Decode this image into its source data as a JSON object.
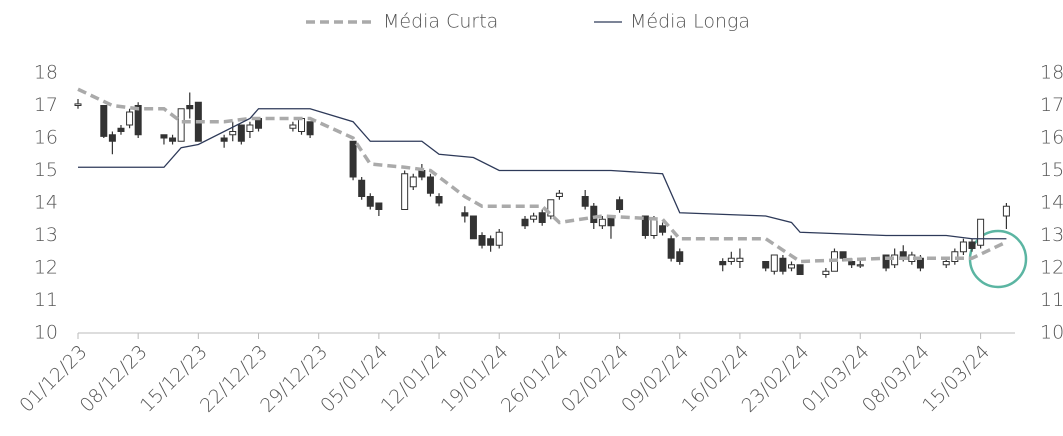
{
  "chart_data": {
    "type": "candlestick",
    "x": [
      "01/12/23",
      "04/12/23",
      "05/12/23",
      "06/12/23",
      "07/12/23",
      "08/12/23",
      "11/12/23",
      "12/12/23",
      "13/12/23",
      "14/12/23",
      "15/12/23",
      "18/12/23",
      "19/12/23",
      "20/12/23",
      "21/12/23",
      "22/12/23",
      "26/12/23",
      "27/12/23",
      "28/12/23",
      "02/01/24",
      "03/01/24",
      "04/01/24",
      "05/01/24",
      "08/01/24",
      "09/01/24",
      "10/01/24",
      "11/01/24",
      "12/01/24",
      "15/01/24",
      "16/01/24",
      "17/01/24",
      "18/01/24",
      "19/01/24",
      "22/01/24",
      "23/01/24",
      "24/01/24",
      "25/01/24",
      "26/01/24",
      "29/01/24",
      "30/01/24",
      "31/01/24",
      "01/02/24",
      "02/02/24",
      "05/02/24",
      "06/02/24",
      "07/02/24",
      "08/02/24",
      "09/02/24",
      "14/02/24",
      "15/02/24",
      "16/02/24",
      "19/02/24",
      "20/02/24",
      "21/02/24",
      "22/02/24",
      "23/02/24",
      "26/02/24",
      "27/02/24",
      "28/02/24",
      "29/02/24",
      "01/03/24",
      "04/03/24",
      "05/03/24",
      "06/03/24",
      "07/03/24",
      "08/03/24",
      "11/03/24",
      "12/03/24",
      "13/03/24",
      "14/03/24",
      "15/03/24",
      "18/03/24"
    ],
    "open": [
      17.0,
      17.0,
      16.1,
      16.3,
      16.4,
      17.0,
      16.1,
      16.0,
      15.9,
      17.0,
      17.1,
      16.0,
      16.1,
      16.4,
      16.2,
      16.6,
      16.3,
      16.2,
      16.5,
      15.9,
      14.7,
      14.2,
      14.0,
      13.8,
      14.5,
      15.0,
      14.8,
      14.2,
      13.7,
      13.6,
      13.0,
      12.9,
      12.7,
      13.5,
      13.5,
      13.7,
      13.6,
      14.2,
      14.2,
      13.9,
      13.3,
      13.6,
      14.1,
      13.6,
      13.0,
      13.3,
      12.9,
      12.5,
      12.2,
      12.2,
      12.2,
      12.2,
      11.9,
      12.3,
      12.0,
      12.1,
      11.8,
      11.9,
      12.5,
      12.2,
      12.1,
      12.4,
      12.1,
      12.5,
      12.2,
      12.3,
      12.1,
      12.2,
      12.5,
      12.8,
      12.7,
      13.6
    ],
    "high": [
      17.2,
      17.0,
      16.2,
      16.4,
      16.9,
      17.1,
      16.1,
      16.1,
      16.9,
      17.4,
      17.1,
      16.1,
      16.5,
      16.4,
      16.5,
      16.6,
      16.5,
      16.6,
      16.5,
      15.9,
      14.8,
      14.3,
      14.0,
      15.0,
      14.9,
      15.2,
      14.9,
      14.3,
      13.9,
      13.6,
      13.1,
      13.0,
      13.2,
      13.6,
      13.7,
      13.8,
      14.1,
      14.4,
      14.4,
      14.0,
      13.6,
      13.6,
      14.2,
      13.6,
      13.6,
      13.4,
      13.0,
      12.6,
      12.3,
      12.5,
      12.6,
      12.2,
      12.4,
      12.4,
      12.2,
      12.1,
      12.0,
      12.6,
      12.5,
      12.3,
      12.3,
      12.4,
      12.6,
      12.7,
      12.5,
      12.4,
      12.3,
      12.6,
      12.9,
      12.9,
      13.5,
      14.0
    ],
    "low": [
      16.9,
      16.0,
      15.5,
      16.1,
      16.3,
      16.0,
      15.8,
      15.8,
      15.9,
      16.6,
      15.9,
      15.7,
      15.9,
      15.8,
      16.0,
      16.2,
      16.2,
      16.1,
      16.0,
      14.7,
      14.1,
      13.8,
      13.6,
      13.8,
      14.4,
      14.7,
      14.2,
      13.9,
      13.4,
      12.9,
      12.6,
      12.5,
      12.6,
      13.2,
      13.4,
      13.3,
      13.5,
      14.1,
      13.8,
      13.2,
      13.2,
      12.9,
      13.7,
      12.9,
      12.9,
      13.0,
      12.2,
      12.1,
      11.9,
      12.1,
      12.0,
      11.9,
      11.8,
      11.8,
      11.9,
      11.8,
      11.7,
      11.9,
      12.2,
      12.0,
      12.0,
      11.9,
      12.0,
      12.2,
      12.1,
      11.9,
      12.0,
      12.1,
      12.4,
      12.5,
      12.6,
      13.2
    ],
    "close": [
      17.05,
      16.05,
      15.9,
      16.2,
      16.8,
      16.1,
      16.0,
      15.9,
      16.9,
      16.9,
      15.9,
      15.9,
      16.2,
      15.9,
      16.4,
      16.3,
      16.4,
      16.6,
      16.1,
      14.8,
      14.2,
      13.9,
      13.8,
      14.9,
      14.8,
      14.8,
      14.3,
      14.0,
      13.6,
      12.9,
      12.7,
      12.7,
      13.1,
      13.3,
      13.6,
      13.4,
      14.1,
      14.3,
      13.9,
      13.4,
      13.5,
      13.3,
      13.8,
      13.0,
      13.5,
      13.1,
      12.3,
      12.2,
      12.1,
      12.3,
      12.3,
      12.0,
      12.4,
      11.9,
      12.1,
      11.8,
      11.9,
      12.5,
      12.3,
      12.1,
      12.1,
      12.0,
      12.4,
      12.3,
      12.4,
      12.0,
      12.2,
      12.5,
      12.8,
      12.6,
      13.5,
      13.9
    ],
    "series": [
      {
        "name": "Média Curta",
        "color": "#aaaaaa",
        "dashed": true,
        "x": [
          "01/12/23",
          "05/12/23",
          "08/12/23",
          "11/12/23",
          "13/12/23",
          "18/12/23",
          "21/12/23",
          "28/12/23",
          "02/01/24",
          "04/01/24",
          "08/01/24",
          "11/01/24",
          "15/01/24",
          "17/01/24",
          "24/01/24",
          "26/01/24",
          "31/01/24",
          "07/02/24",
          "09/02/24",
          "19/02/24",
          "23/02/24",
          "04/03/24",
          "14/03/24",
          "18/03/24"
        ],
        "values": [
          17.5,
          17.0,
          16.9,
          16.9,
          16.5,
          16.5,
          16.6,
          16.6,
          16.0,
          15.2,
          15.1,
          15.0,
          14.2,
          13.9,
          13.9,
          13.4,
          13.6,
          13.5,
          12.9,
          12.9,
          12.2,
          12.3,
          12.3,
          12.8
        ]
      },
      {
        "name": "Média Longa",
        "color": "#2e3a59",
        "dashed": false,
        "x": [
          "01/12/23",
          "11/12/23",
          "13/12/23",
          "15/12/23",
          "21/12/23",
          "22/12/23",
          "28/12/23",
          "02/01/24",
          "04/01/24",
          "10/01/24",
          "12/01/24",
          "16/01/24",
          "19/01/24",
          "01/02/24",
          "07/02/24",
          "09/02/24",
          "19/02/24",
          "22/02/24",
          "23/02/24",
          "04/03/24",
          "11/03/24",
          "14/03/24",
          "18/03/24"
        ],
        "values": [
          15.1,
          15.1,
          15.7,
          15.8,
          16.6,
          16.9,
          16.9,
          16.5,
          15.9,
          15.9,
          15.5,
          15.4,
          15.0,
          15.0,
          14.9,
          13.7,
          13.6,
          13.4,
          13.1,
          13.0,
          13.0,
          12.9,
          12.9
        ]
      }
    ],
    "xlim": [
      "01/12/23",
      "19/03/24"
    ],
    "xticks": [
      "01/12/23",
      "08/12/23",
      "15/12/23",
      "22/12/23",
      "29/12/23",
      "05/01/24",
      "12/01/24",
      "19/01/24",
      "26/01/24",
      "02/02/24",
      "09/02/24",
      "16/02/24",
      "23/02/24",
      "01/03/24",
      "08/03/24",
      "15/03/24"
    ],
    "ylim": [
      10,
      18
    ],
    "yticks": [
      10,
      11,
      12,
      13,
      14,
      15,
      16,
      17,
      18
    ],
    "y2lim": [
      10,
      18
    ],
    "y2ticks": [
      10,
      11,
      12,
      13,
      14,
      15,
      16,
      17,
      18
    ],
    "up_color": "#ffffff",
    "down_color": "#333333"
  }
}
